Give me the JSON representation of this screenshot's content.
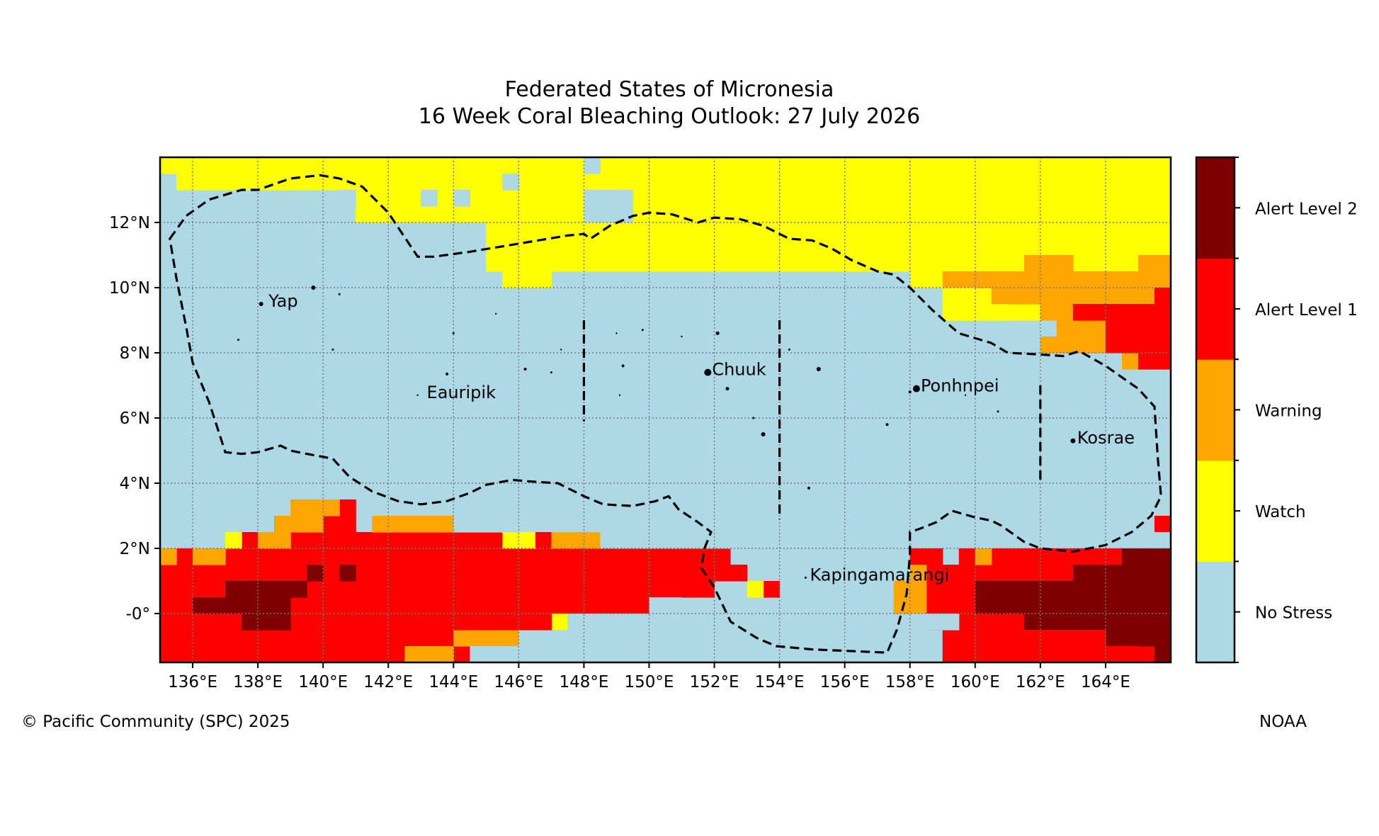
{
  "title": {
    "line1": "Federated States of Micronesia",
    "line2": "16 Week Coral Bleaching Outlook: 27 July 2026"
  },
  "credits": {
    "left": "© Pacific Community (SPC) 2025",
    "right": "NOAA"
  },
  "map": {
    "lon_range": [
      135,
      166
    ],
    "lat_range": [
      -1.5,
      14
    ],
    "lon_ticks": [
      {
        "value": 136,
        "label": "136°E"
      },
      {
        "value": 138,
        "label": "138°E"
      },
      {
        "value": 140,
        "label": "140°E"
      },
      {
        "value": 142,
        "label": "142°E"
      },
      {
        "value": 144,
        "label": "144°E"
      },
      {
        "value": 146,
        "label": "146°E"
      },
      {
        "value": 148,
        "label": "148°E"
      },
      {
        "value": 150,
        "label": "150°E"
      },
      {
        "value": 152,
        "label": "152°E"
      },
      {
        "value": 154,
        "label": "154°E"
      },
      {
        "value": 156,
        "label": "156°E"
      },
      {
        "value": 158,
        "label": "158°E"
      },
      {
        "value": 160,
        "label": "160°E"
      },
      {
        "value": 162,
        "label": "162°E"
      },
      {
        "value": 164,
        "label": "164°E"
      }
    ],
    "lat_ticks": [
      {
        "value": 12,
        "label": "12°N"
      },
      {
        "value": 10,
        "label": "10°N"
      },
      {
        "value": 8,
        "label": "8°N"
      },
      {
        "value": 6,
        "label": "6°N"
      },
      {
        "value": 4,
        "label": "4°N"
      },
      {
        "value": 2,
        "label": "2°N"
      },
      {
        "value": 0,
        "label": "-0°"
      }
    ],
    "gridlines": true,
    "places": [
      {
        "name": "Yap",
        "lon": 138.2,
        "lat": 9.5
      },
      {
        "name": "Eauripik",
        "lon": 143.05,
        "lat": 6.7
      },
      {
        "name": "Chuuk",
        "lon": 151.8,
        "lat": 7.4
      },
      {
        "name": "Ponhnpei",
        "lon": 158.2,
        "lat": 6.9
      },
      {
        "name": "Kosrae",
        "lon": 163.0,
        "lat": 5.3
      },
      {
        "name": "Kapingamarangi",
        "lon": 154.8,
        "lat": 1.1
      }
    ]
  },
  "legend": {
    "categories": [
      "No Stress",
      "Watch",
      "Warning",
      "Alert Level 1",
      "Alert Level 2"
    ],
    "colors": [
      "#add8e6",
      "#ffff00",
      "#ffa500",
      "#ff0000",
      "#800000"
    ]
  }
}
